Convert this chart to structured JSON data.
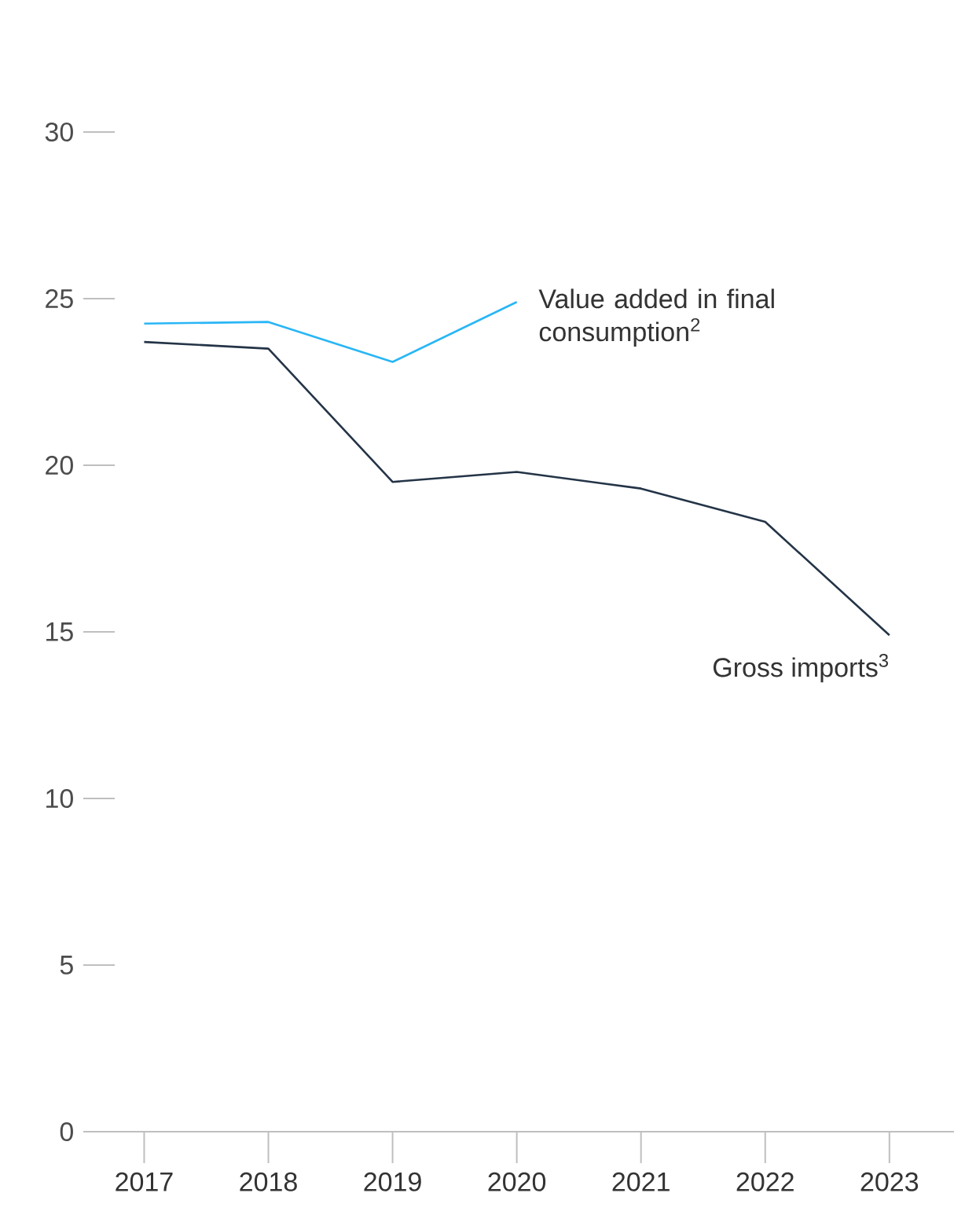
{
  "chart_data": {
    "type": "line",
    "categories": [
      "2017",
      "2018",
      "2019",
      "2020",
      "2021",
      "2022",
      "2023"
    ],
    "series": [
      {
        "name": "Value added in final consumption$^{2}$",
        "color": "#29b6f6",
        "values": [
          24.25,
          24.3,
          23.1,
          24.9,
          null,
          null,
          null
        ]
      },
      {
        "name": "Gross imports$^{3}$",
        "color": "#243447",
        "values": [
          23.7,
          23.5,
          19.5,
          19.8,
          19.3,
          18.3,
          14.9
        ]
      }
    ],
    "ylim": [
      0,
      30
    ],
    "yticks": [
      0,
      5,
      10,
      15,
      20,
      25,
      30
    ],
    "grid": false,
    "legend": false,
    "marker": "none",
    "line_style": "solid"
  }
}
